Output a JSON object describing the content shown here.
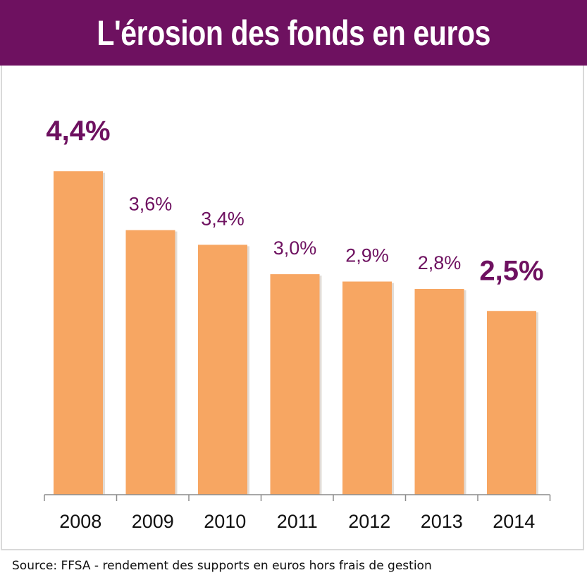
{
  "title": "L'érosion des fonds en euros",
  "source": "Source: FFSA - rendement des supports en euros hors frais de gestion",
  "colors": {
    "title_background": "#6e1160",
    "bar": "#f7a662",
    "bar_shadow": "#e2dcd6",
    "value_label": "#6e1160",
    "axis": "#8c8c8c"
  },
  "chart_data": {
    "type": "bar",
    "categories": [
      "2008",
      "2009",
      "2010",
      "2011",
      "2012",
      "2013",
      "2014"
    ],
    "values": [
      4.4,
      3.6,
      3.4,
      3.0,
      2.9,
      2.8,
      2.5
    ],
    "value_labels": [
      "4,4%",
      "3,6%",
      "3,4%",
      "3,0%",
      "2,9%",
      "2,8%",
      "2,5%"
    ],
    "highlighted": [
      true,
      false,
      false,
      false,
      false,
      false,
      true
    ],
    "title": "L'érosion des fonds en euros",
    "xlabel": "",
    "ylabel": "",
    "grid": false,
    "legend": "none"
  }
}
